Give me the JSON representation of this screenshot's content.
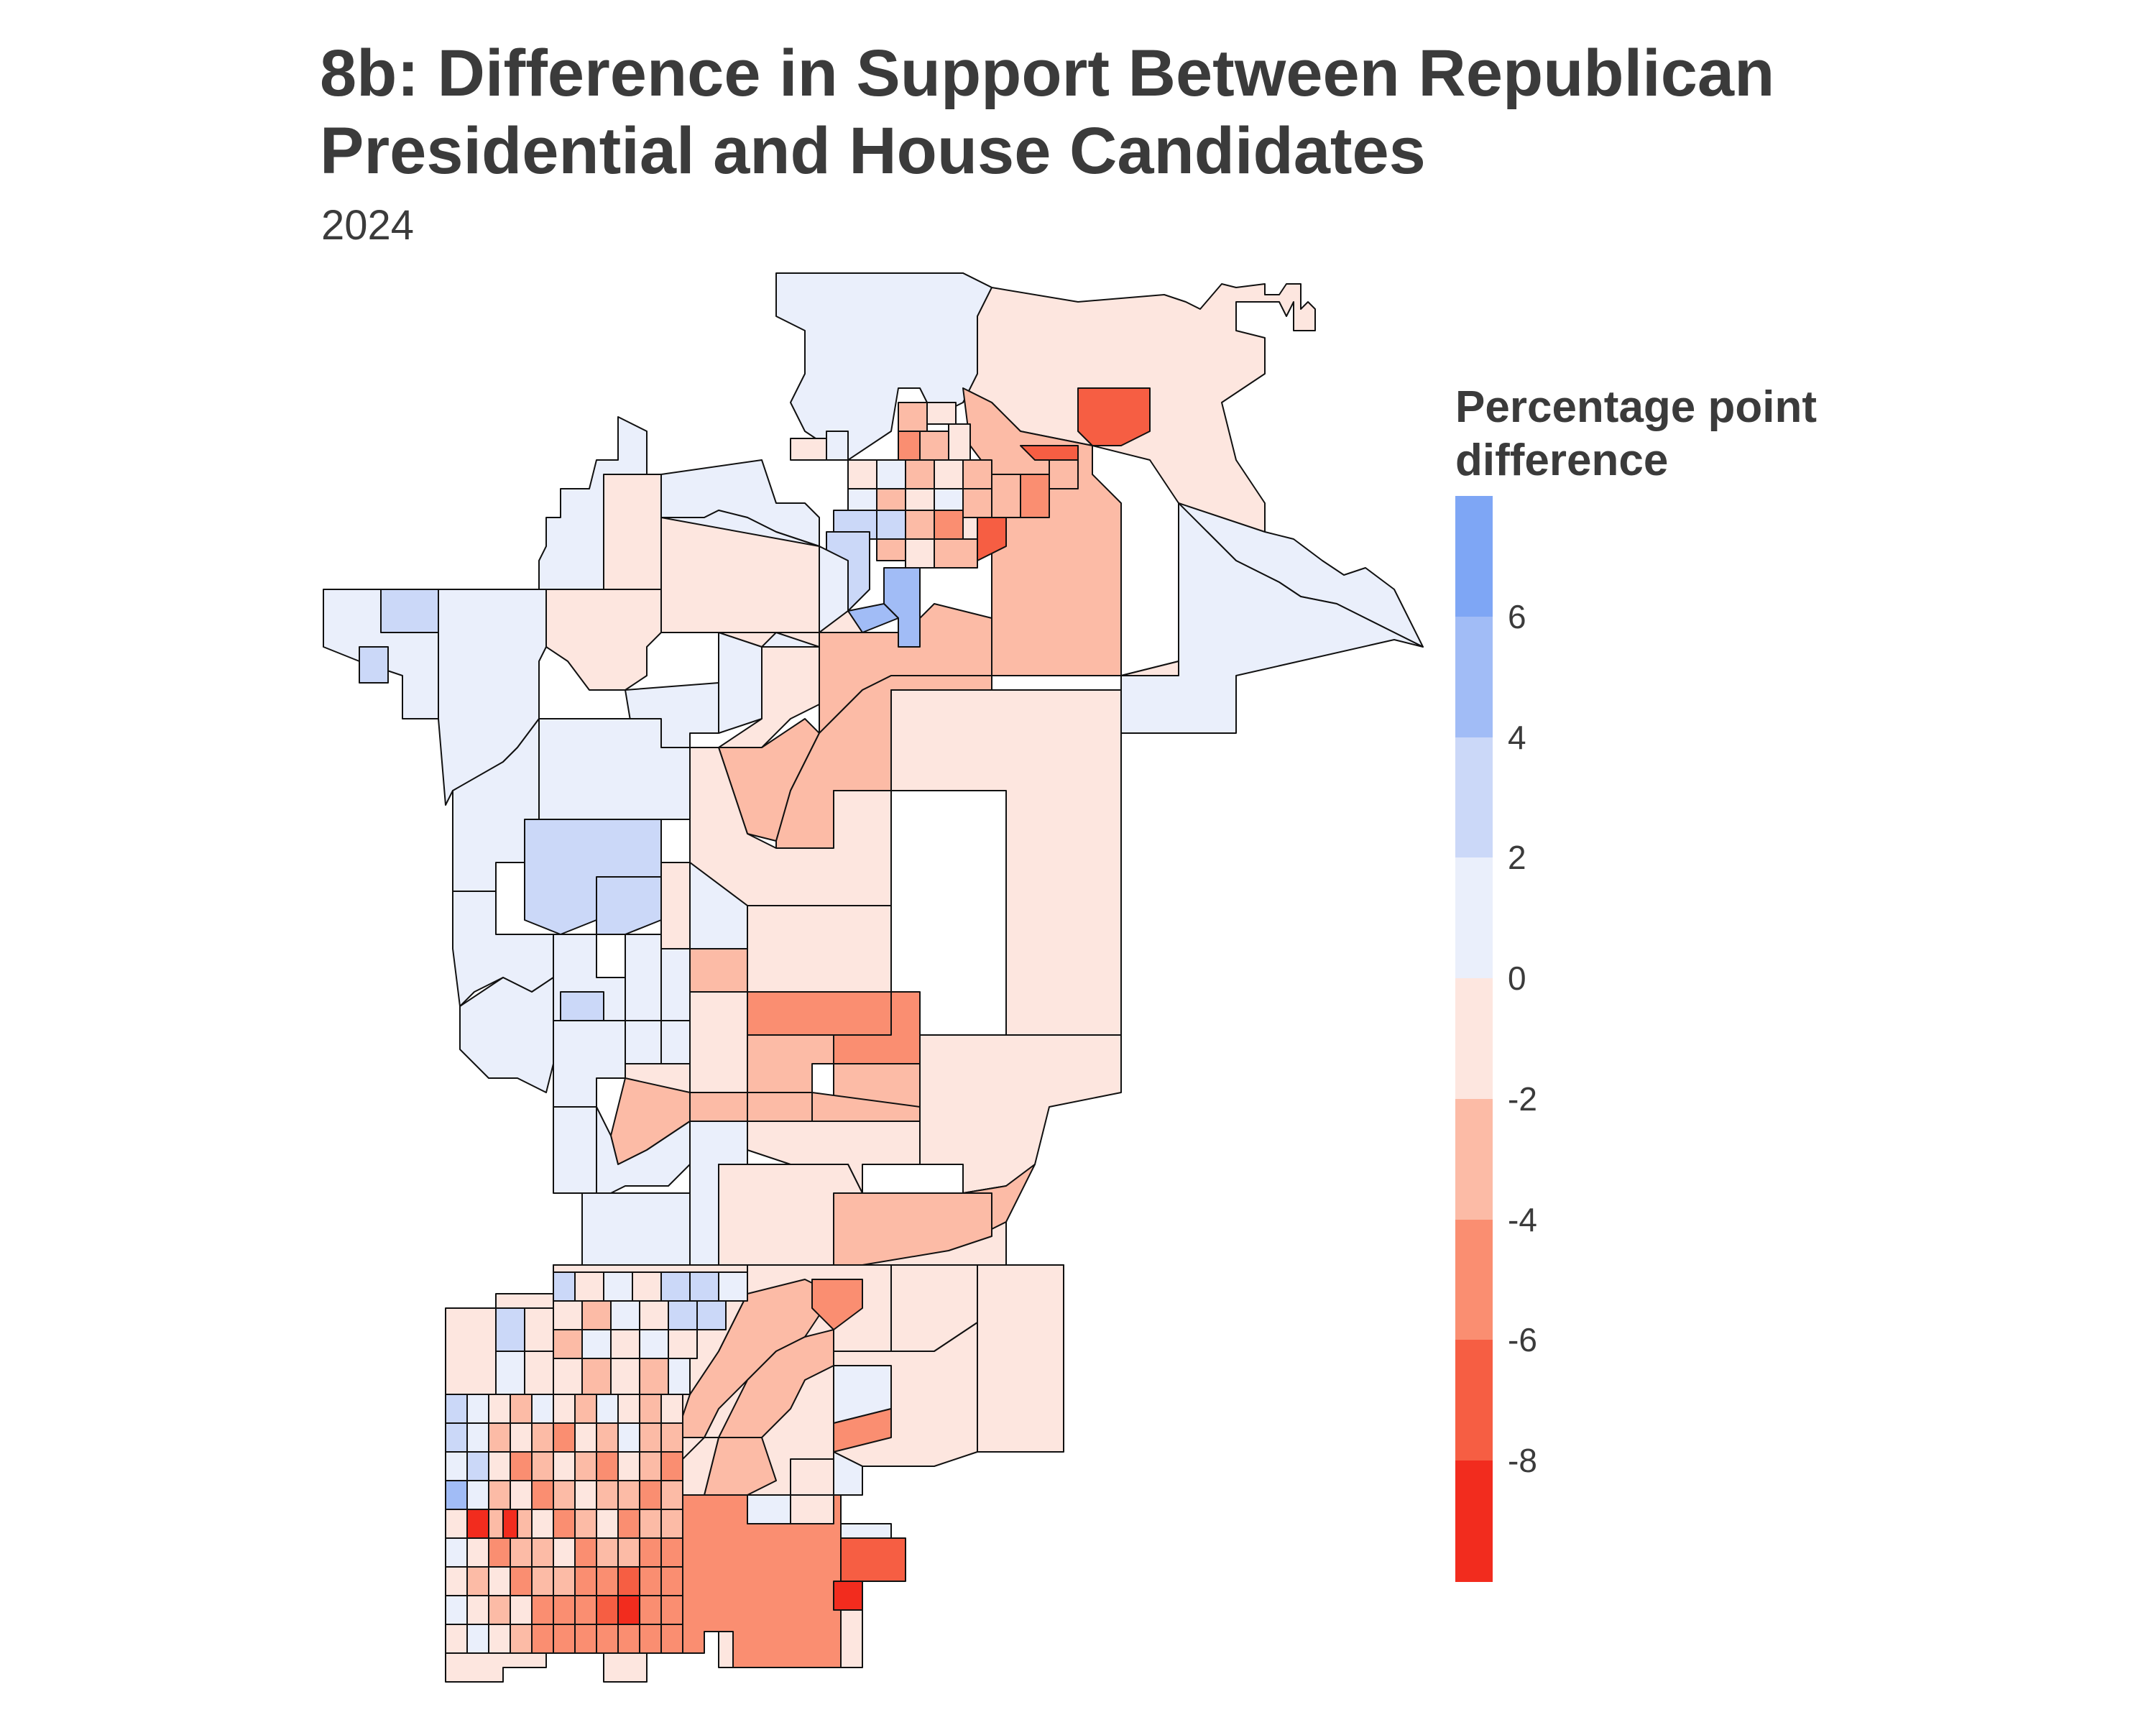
{
  "title": {
    "line1": "8b: Difference in Support Between Republican",
    "line2": "Presidential and House Candidates"
  },
  "subtitle": "2024",
  "legend": {
    "title_line1": "Percentage point",
    "title_line2": "difference",
    "ticks": [
      "6",
      "4",
      "2",
      "0",
      "-2",
      "-4",
      "-6",
      "-8"
    ],
    "bins": [
      {
        "range": "6 to 8",
        "color": "#7ea6f5"
      },
      {
        "range": "4 to 6",
        "color": "#a1bcf6"
      },
      {
        "range": "2 to 4",
        "color": "#cbd8f8"
      },
      {
        "range": "0 to 2",
        "color": "#eaeffb"
      },
      {
        "range": "-2 to 0",
        "color": "#fde6df"
      },
      {
        "range": "-4 to -2",
        "color": "#fcbba6"
      },
      {
        "range": "-6 to -4",
        "color": "#fa8e71"
      },
      {
        "range": "-8 to -6",
        "color": "#f65e43"
      },
      {
        "range": "-10 to -8",
        "color": "#f22c1e"
      }
    ]
  },
  "map": {
    "border_color": "#111111"
  }
}
